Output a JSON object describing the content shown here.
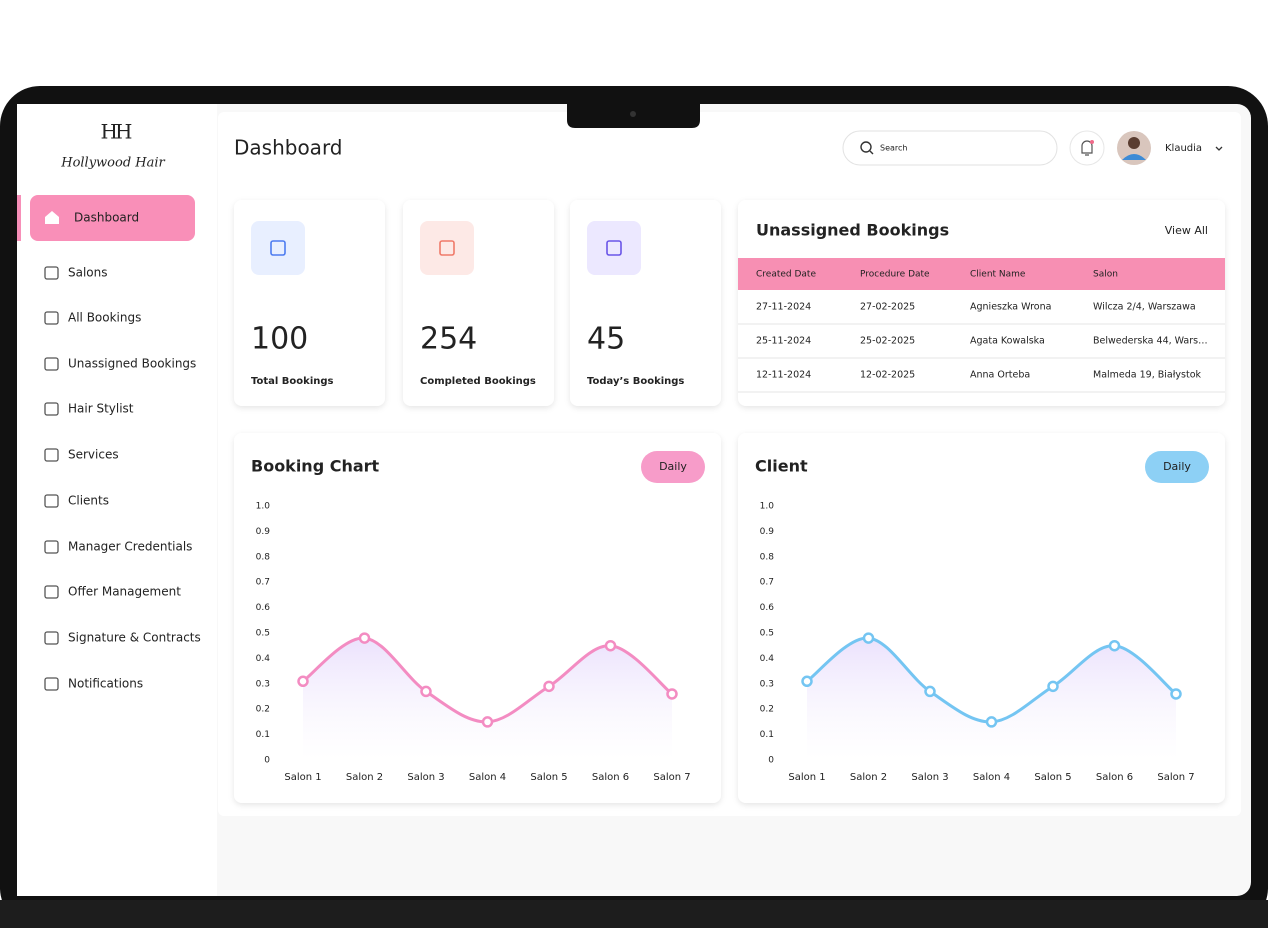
{
  "brand": {
    "initials": "HH",
    "name": "Hollywood Hair"
  },
  "nav": [
    "Dashboard",
    "Salons",
    "All Bookings",
    "Unassigned Bookings",
    "Hair Stylist",
    "Services",
    "Clients",
    "Manager Credentials",
    "Offer Management",
    "Signature & Contracts",
    "Notifications"
  ],
  "header": {
    "title": "Dashboard",
    "search_placeholder": "Search",
    "user": "Klaudia"
  },
  "stats": [
    {
      "value": 100,
      "label": "Total Bookings"
    },
    {
      "value": 254,
      "label": "Completed Bookings"
    },
    {
      "value": 45,
      "label": "Today’s Bookings"
    }
  ],
  "bookings": {
    "title": "Unassigned Bookings",
    "view_all": "View All",
    "columns": [
      "Created Date",
      "Procedure Date",
      "Client Name",
      "Salon"
    ],
    "rows": [
      [
        "27-11-2024",
        "27-02-2025",
        "Agnieszka Wrona",
        "Wilcza 2/4, Warszawa"
      ],
      [
        "25-11-2024",
        "25-02-2025",
        "Agata Kowalska",
        "Belwederska 44, Wars…"
      ],
      [
        "12-11-2024",
        "12-02-2025",
        "Anna Orteba",
        "Malmeda 19, Białystok"
      ]
    ]
  },
  "chart_data": [
    {
      "type": "line",
      "title": "Booking Chart",
      "filter": "Daily",
      "categories": [
        "Salon 1",
        "Salon 2",
        "Salon 3",
        "Salon 4",
        "Salon 5",
        "Salon 6",
        "Salon 7"
      ],
      "values": [
        0.31,
        0.48,
        0.27,
        0.15,
        0.29,
        0.45,
        0.26
      ],
      "color": "#f38cc2",
      "ylim": [
        0,
        1
      ],
      "yticks": [
        0,
        0.1,
        0.2,
        0.3,
        0.4,
        0.5,
        0.6,
        0.7,
        0.8,
        0.9,
        {
          "value": 1,
          "label": "1.0"
        }
      ]
    },
    {
      "type": "line",
      "title": "Client",
      "filter": "Daily",
      "categories": [
        "Salon 1",
        "Salon 2",
        "Salon 3",
        "Salon 4",
        "Salon 5",
        "Salon 6",
        "Salon 7"
      ],
      "values": [
        0.31,
        0.48,
        0.27,
        0.15,
        0.29,
        0.45,
        0.26
      ],
      "color": "#74c5f2",
      "ylim": [
        0,
        1
      ],
      "yticks": [
        0,
        0.1,
        0.2,
        0.3,
        0.4,
        0.5,
        0.6,
        0.7,
        0.8,
        0.9,
        {
          "value": 1,
          "label": "1.0"
        }
      ]
    }
  ]
}
